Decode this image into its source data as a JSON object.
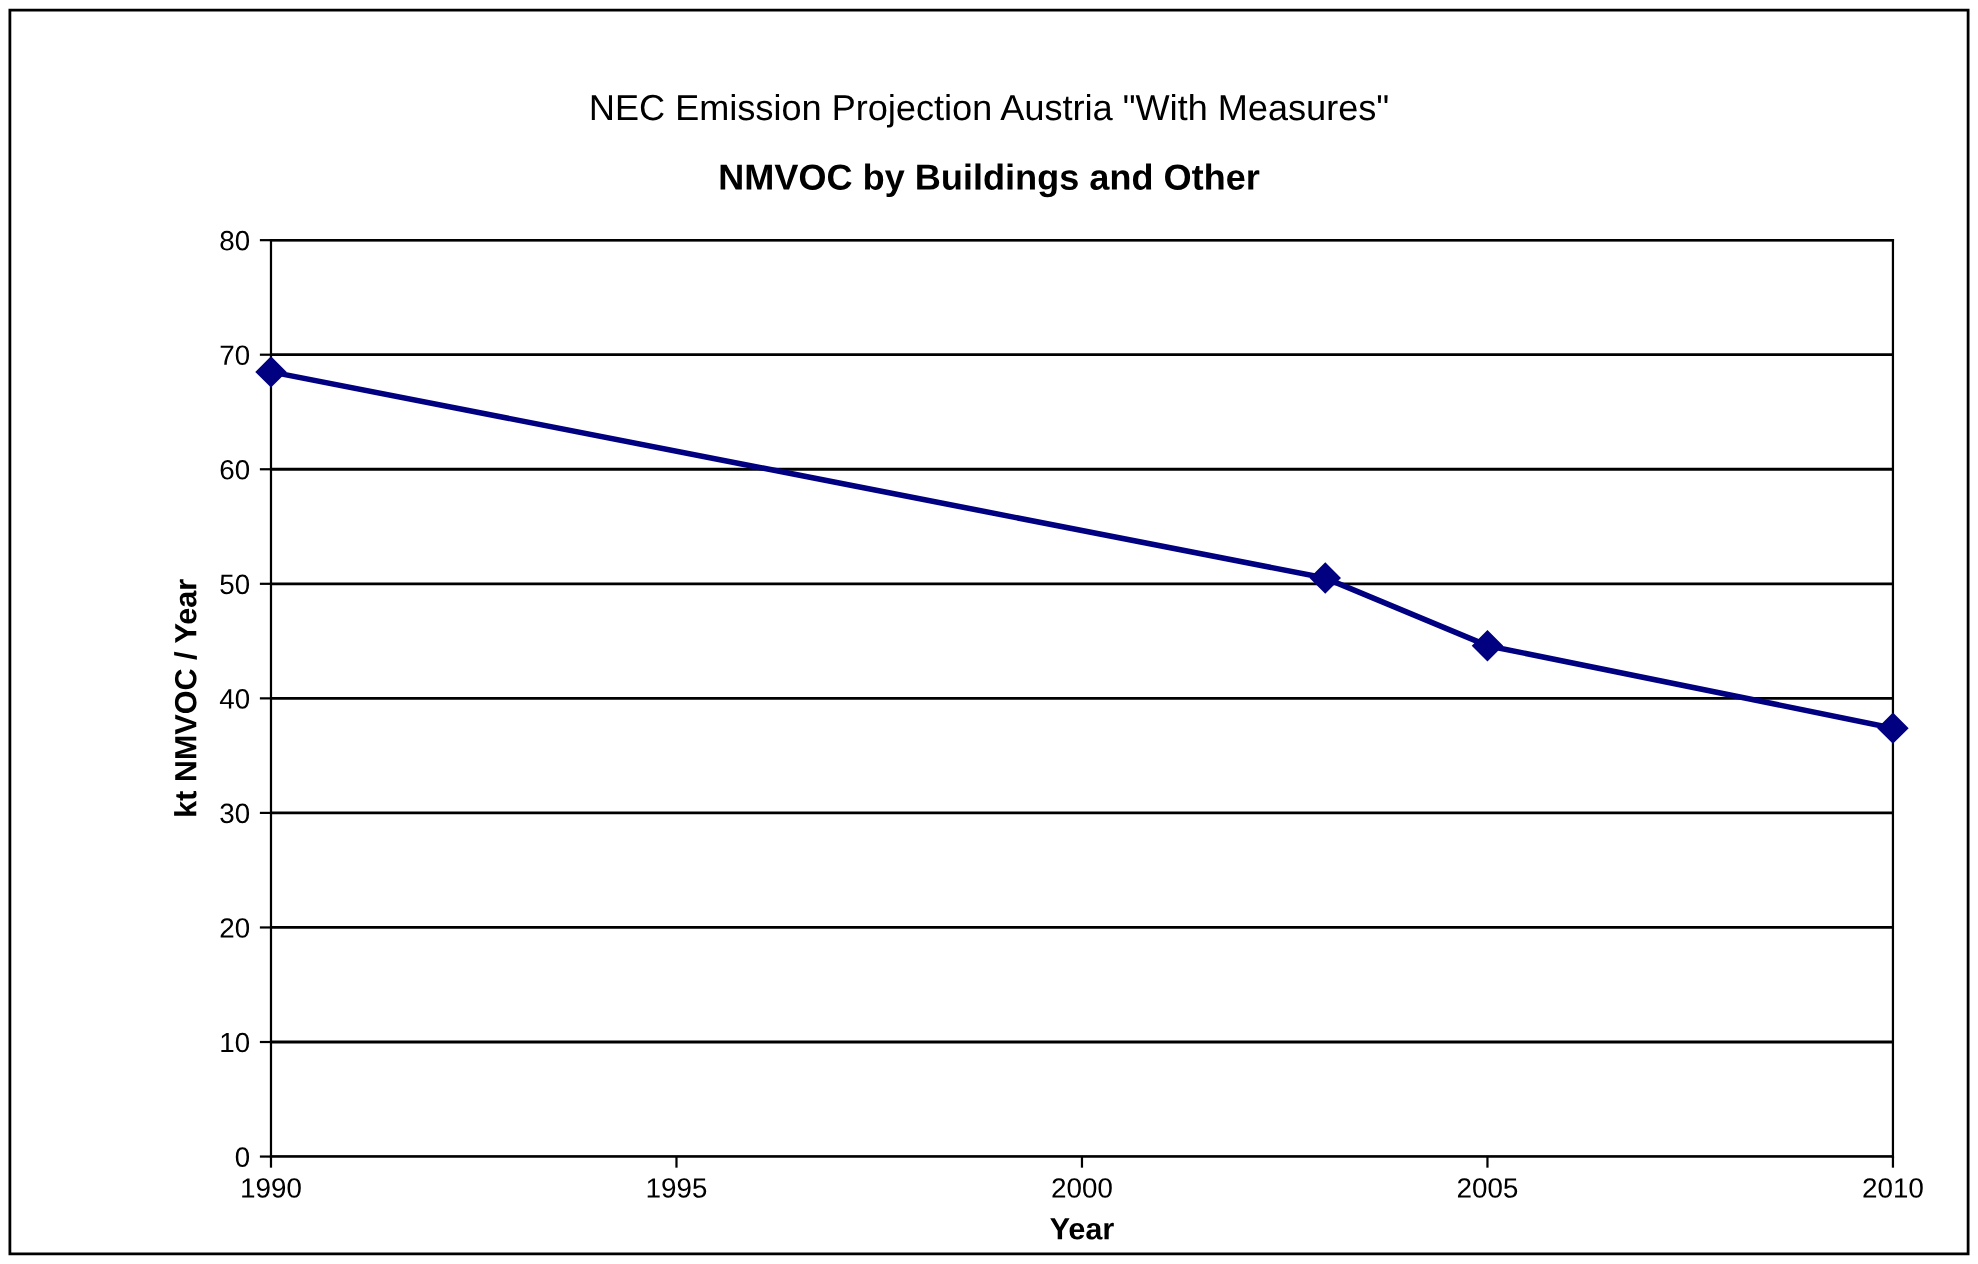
{
  "chart_data": {
    "type": "line",
    "title": "NEC Emission Projection Austria \"With Measures\"",
    "subtitle": "NMVOC by Buildings and Other",
    "xlabel": "Year",
    "ylabel": "kt NMVOC / Year",
    "x": [
      1990,
      2003,
      2005,
      2010
    ],
    "series": [
      {
        "color": "#000080",
        "values": [
          68.5,
          50.5,
          44.6,
          37.4
        ]
      }
    ],
    "xlim": [
      1990,
      2010
    ],
    "xticks": [
      1990,
      1995,
      2000,
      2005,
      2010
    ],
    "ylim": [
      0,
      80
    ],
    "yticks": [
      0,
      10,
      20,
      30,
      40,
      50,
      60,
      70,
      80
    ],
    "grid": "y",
    "marker": "diamond",
    "line_style": "solid",
    "legend": false
  }
}
